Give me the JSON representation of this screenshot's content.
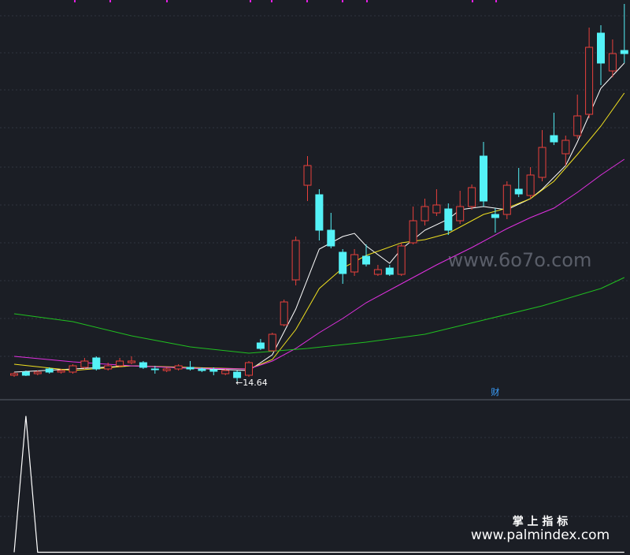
{
  "chart_data": [
    {
      "type": "candlestick",
      "up_color": "#e8403c",
      "down_color": "#54f2f7",
      "ylim": [
        13.55,
        38.8
      ],
      "open": [
        15.0,
        15.2,
        15.1,
        15.4,
        15.2,
        15.2,
        15.5,
        16.1,
        15.4,
        15.6,
        15.8,
        15.8,
        15.4,
        15.3,
        15.4,
        15.5,
        15.4,
        15.35,
        15.1,
        15.2,
        15.0,
        17.05,
        16.55,
        18.2,
        21.05,
        27.05,
        26.45,
        24.2,
        22.8,
        21.55,
        22.55,
        21.4,
        21.8,
        21.4,
        23.4,
        24.8,
        25.3,
        25.55,
        24.8,
        25.7,
        28.9,
        25.2,
        25.2,
        26.8,
        26.4,
        27.55,
        30.2,
        29.05,
        30.2,
        31.55,
        36.7,
        34.3,
        35.6
      ],
      "high": [
        15.2,
        15.3,
        15.3,
        15.5,
        15.4,
        15.7,
        16.1,
        16.2,
        15.8,
        16.1,
        16.2,
        15.9,
        15.6,
        15.5,
        15.7,
        15.9,
        15.5,
        15.5,
        15.4,
        15.3,
        15.9,
        17.3,
        17.7,
        19.8,
        23.8,
        28.9,
        26.8,
        25.3,
        23.0,
        23.0,
        23.3,
        22.0,
        22.0,
        23.4,
        25.7,
        26.2,
        26.8,
        25.9,
        26.7,
        27.1,
        29.8,
        25.6,
        27.3,
        28.15,
        28.2,
        30.55,
        31.65,
        30.2,
        32.8,
        37.05,
        37.2,
        36.3,
        38.55
      ],
      "low": [
        14.9,
        14.95,
        15.0,
        15.1,
        15.1,
        15.1,
        15.4,
        15.3,
        15.3,
        15.5,
        15.7,
        15.4,
        15.1,
        15.2,
        15.3,
        15.3,
        15.2,
        15.0,
        15.0,
        14.64,
        14.9,
        16.6,
        16.5,
        18.1,
        20.7,
        26.05,
        23.55,
        23.05,
        20.8,
        21.3,
        21.9,
        21.3,
        21.3,
        21.3,
        23.3,
        24.5,
        25.1,
        23.9,
        24.6,
        25.5,
        25.7,
        24.05,
        24.9,
        26.3,
        26.2,
        27.3,
        29.6,
        28.3,
        30.0,
        31.3,
        33.4,
        33.9,
        34.8
      ],
      "close": [
        15.1,
        15.0,
        15.2,
        15.2,
        15.3,
        15.6,
        15.9,
        15.4,
        15.6,
        15.9,
        15.9,
        15.5,
        15.35,
        15.4,
        15.6,
        15.4,
        15.3,
        15.25,
        15.3,
        14.85,
        15.8,
        16.7,
        17.6,
        19.65,
        23.55,
        28.3,
        24.2,
        23.2,
        21.45,
        22.65,
        22.05,
        21.7,
        21.4,
        23.2,
        24.8,
        25.7,
        25.8,
        24.2,
        25.7,
        26.9,
        26.05,
        25.0,
        27.05,
        26.5,
        27.7,
        29.45,
        29.8,
        29.9,
        31.45,
        35.8,
        34.8,
        35.4,
        35.4
      ],
      "lines": [
        {
          "color": "#ffffff",
          "x": [
            0,
            10,
            20,
            22,
            24,
            26,
            28,
            29,
            30,
            32,
            33,
            35,
            37,
            38,
            40,
            42,
            44,
            45,
            47,
            48,
            50,
            52
          ],
          "values": [
            15.2,
            15.6,
            15.3,
            16.3,
            19.2,
            23.0,
            23.8,
            24.0,
            23.2,
            22.1,
            23.0,
            24.2,
            24.9,
            25.5,
            25.7,
            25.5,
            26.2,
            26.8,
            28.3,
            29.8,
            33.2,
            34.8
          ]
        },
        {
          "color": "#f0e020",
          "x": [
            0,
            5,
            10,
            20,
            22,
            24,
            26,
            28,
            30,
            33,
            35,
            37,
            40,
            42,
            44,
            46,
            48,
            50,
            52
          ],
          "values": [
            15.7,
            15.3,
            15.6,
            15.4,
            16.0,
            17.9,
            20.5,
            21.8,
            22.6,
            23.4,
            23.6,
            24.0,
            25.2,
            25.6,
            26.2,
            27.3,
            29.0,
            30.8,
            32.9
          ]
        },
        {
          "color": "#e030e0",
          "x": [
            0,
            5,
            10,
            15,
            20,
            22,
            24,
            26,
            28,
            30,
            33,
            36,
            39,
            42,
            44,
            46,
            48,
            50,
            52
          ],
          "values": [
            16.2,
            15.85,
            15.6,
            15.45,
            15.4,
            15.9,
            16.7,
            17.7,
            18.6,
            19.6,
            20.8,
            22.0,
            23.1,
            24.3,
            25.0,
            25.6,
            26.6,
            27.7,
            28.7
          ]
        },
        {
          "color": "#20c020",
          "x": [
            0,
            5,
            10,
            15,
            20,
            25,
            30,
            35,
            40,
            45,
            50,
            52
          ],
          "values": [
            18.9,
            18.4,
            17.5,
            16.8,
            16.4,
            16.7,
            17.1,
            17.6,
            18.5,
            19.4,
            20.5,
            21.2
          ]
        }
      ],
      "low_label": "←14.64",
      "markers": [
        {
          "text": "财",
          "x": 41
        }
      ]
    },
    {
      "type": "line",
      "color": "#ffffff",
      "ylim": [
        -0.02,
        1.12
      ],
      "values": [
        0,
        1,
        0,
        0,
        0,
        0,
        0,
        0,
        0,
        0,
        0,
        0,
        0,
        0,
        0,
        0,
        0,
        0,
        0,
        0,
        0,
        0,
        0,
        0,
        0,
        0,
        0,
        0,
        0,
        0,
        0,
        0,
        0,
        0,
        0,
        0,
        0,
        0,
        0,
        0,
        0,
        0,
        0,
        0,
        0,
        0,
        0,
        0,
        0,
        0,
        0,
        0,
        0
      ]
    }
  ],
  "watermarks": [
    "www.6o7o.com",
    "掌 上 指 标",
    "www.palmindex.com"
  ]
}
